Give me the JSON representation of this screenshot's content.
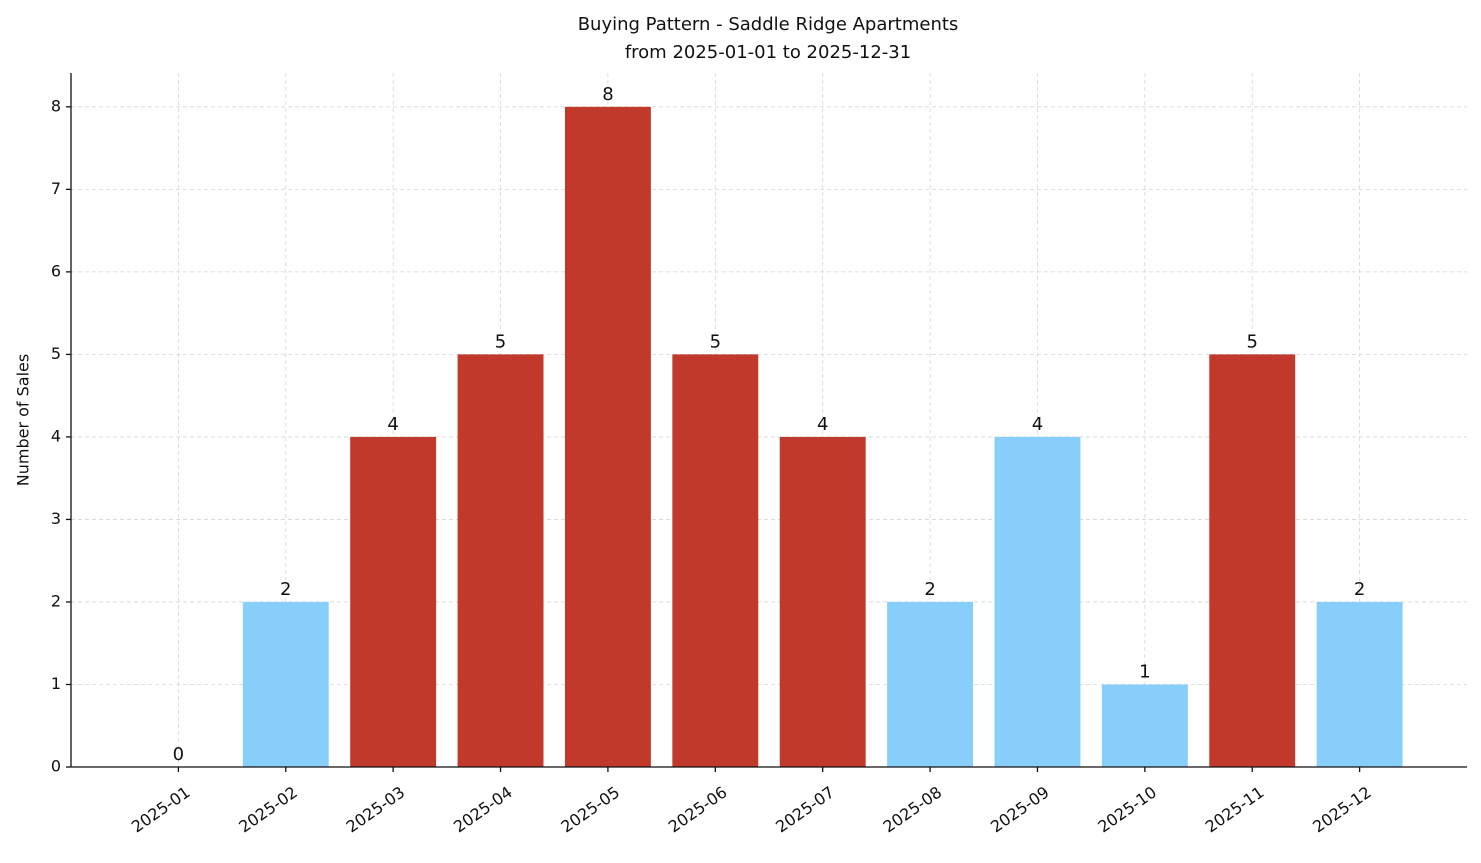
{
  "chart_data": {
    "type": "bar",
    "title": "Buying Pattern - Saddle Ridge Apartments",
    "subtitle": "from 2025-01-01 to 2025-12-31",
    "y_label": "Number of Sales",
    "categories": [
      "2025-01",
      "2025-02",
      "2025-03",
      "2025-04",
      "2025-05",
      "2025-06",
      "2025-07",
      "2025-08",
      "2025-09",
      "2025-10",
      "2025-11",
      "2025-12"
    ],
    "values": [
      0,
      2,
      4,
      5,
      8,
      5,
      4,
      2,
      4,
      1,
      5,
      2
    ],
    "colors": [
      "#87cefa",
      "#87cefa",
      "#c0392b",
      "#c0392b",
      "#c0392b",
      "#c0392b",
      "#c0392b",
      "#87cefa",
      "#87cefa",
      "#87cefa",
      "#c0392b",
      "#87cefa"
    ],
    "ylim": [
      0,
      8.41
    ],
    "yticks": [
      0,
      1,
      2,
      3,
      4,
      5,
      6,
      7,
      8
    ],
    "grid": true
  }
}
